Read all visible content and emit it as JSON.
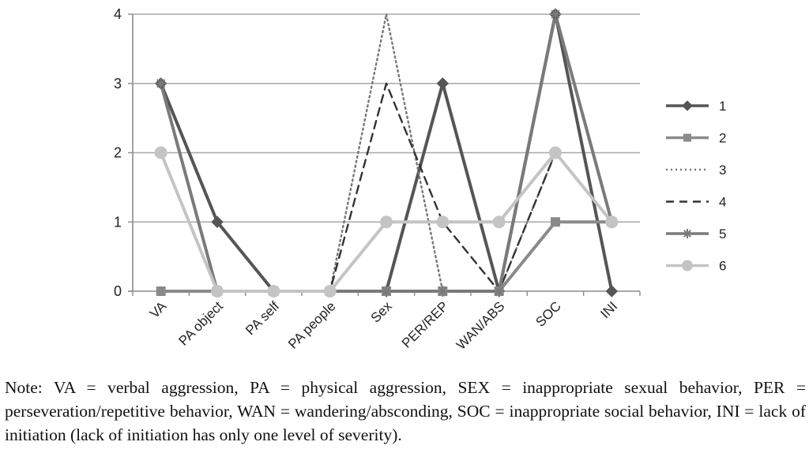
{
  "chart_data": {
    "type": "line",
    "title": "",
    "xlabel": "",
    "ylabel": "",
    "categories": [
      "VA",
      "PA object",
      "PA self",
      "PA people",
      "Sex",
      "PER/REP",
      "WAN/ABS",
      "SOC",
      "INI"
    ],
    "ylim": [
      0,
      4
    ],
    "yticks": [
      0,
      1,
      2,
      3,
      4
    ],
    "grid": "horizontal",
    "legend": "right",
    "series": [
      {
        "name": "1",
        "values": [
          3,
          1,
          0,
          0,
          0,
          3,
          0,
          4,
          0
        ],
        "color": "#555555",
        "dash": "solid",
        "marker": "diamond"
      },
      {
        "name": "2",
        "values": [
          0,
          0,
          0,
          0,
          0,
          0,
          0,
          1,
          1
        ],
        "color": "#8a8a8a",
        "dash": "solid",
        "marker": "square"
      },
      {
        "name": "3",
        "values": [
          3,
          0,
          0,
          0,
          4,
          0,
          0,
          2,
          1
        ],
        "color": "#777777",
        "dash": "dotted",
        "marker": "none"
      },
      {
        "name": "4",
        "values": [
          3,
          0,
          0,
          0,
          3,
          1,
          0,
          2,
          1
        ],
        "color": "#333333",
        "dash": "dashed",
        "marker": "none"
      },
      {
        "name": "5",
        "values": [
          3,
          0,
          0,
          0,
          0,
          0,
          0,
          4,
          1
        ],
        "color": "#7a7a7a",
        "dash": "solid",
        "marker": "star"
      },
      {
        "name": "6",
        "values": [
          2,
          0,
          0,
          0,
          1,
          1,
          1,
          2,
          1
        ],
        "color": "#c4c4c4",
        "dash": "solid",
        "marker": "circle"
      }
    ]
  },
  "note": {
    "text": "Note: VA = verbal aggression, PA = physical aggression, SEX = inappropriate sexual behavior, PER = perseveration/repetitive behavior, WAN = wandering/absconding, SOC = inappropriate social behavior, INI = lack of initiation (lack of initiation has only one level of severity)."
  }
}
